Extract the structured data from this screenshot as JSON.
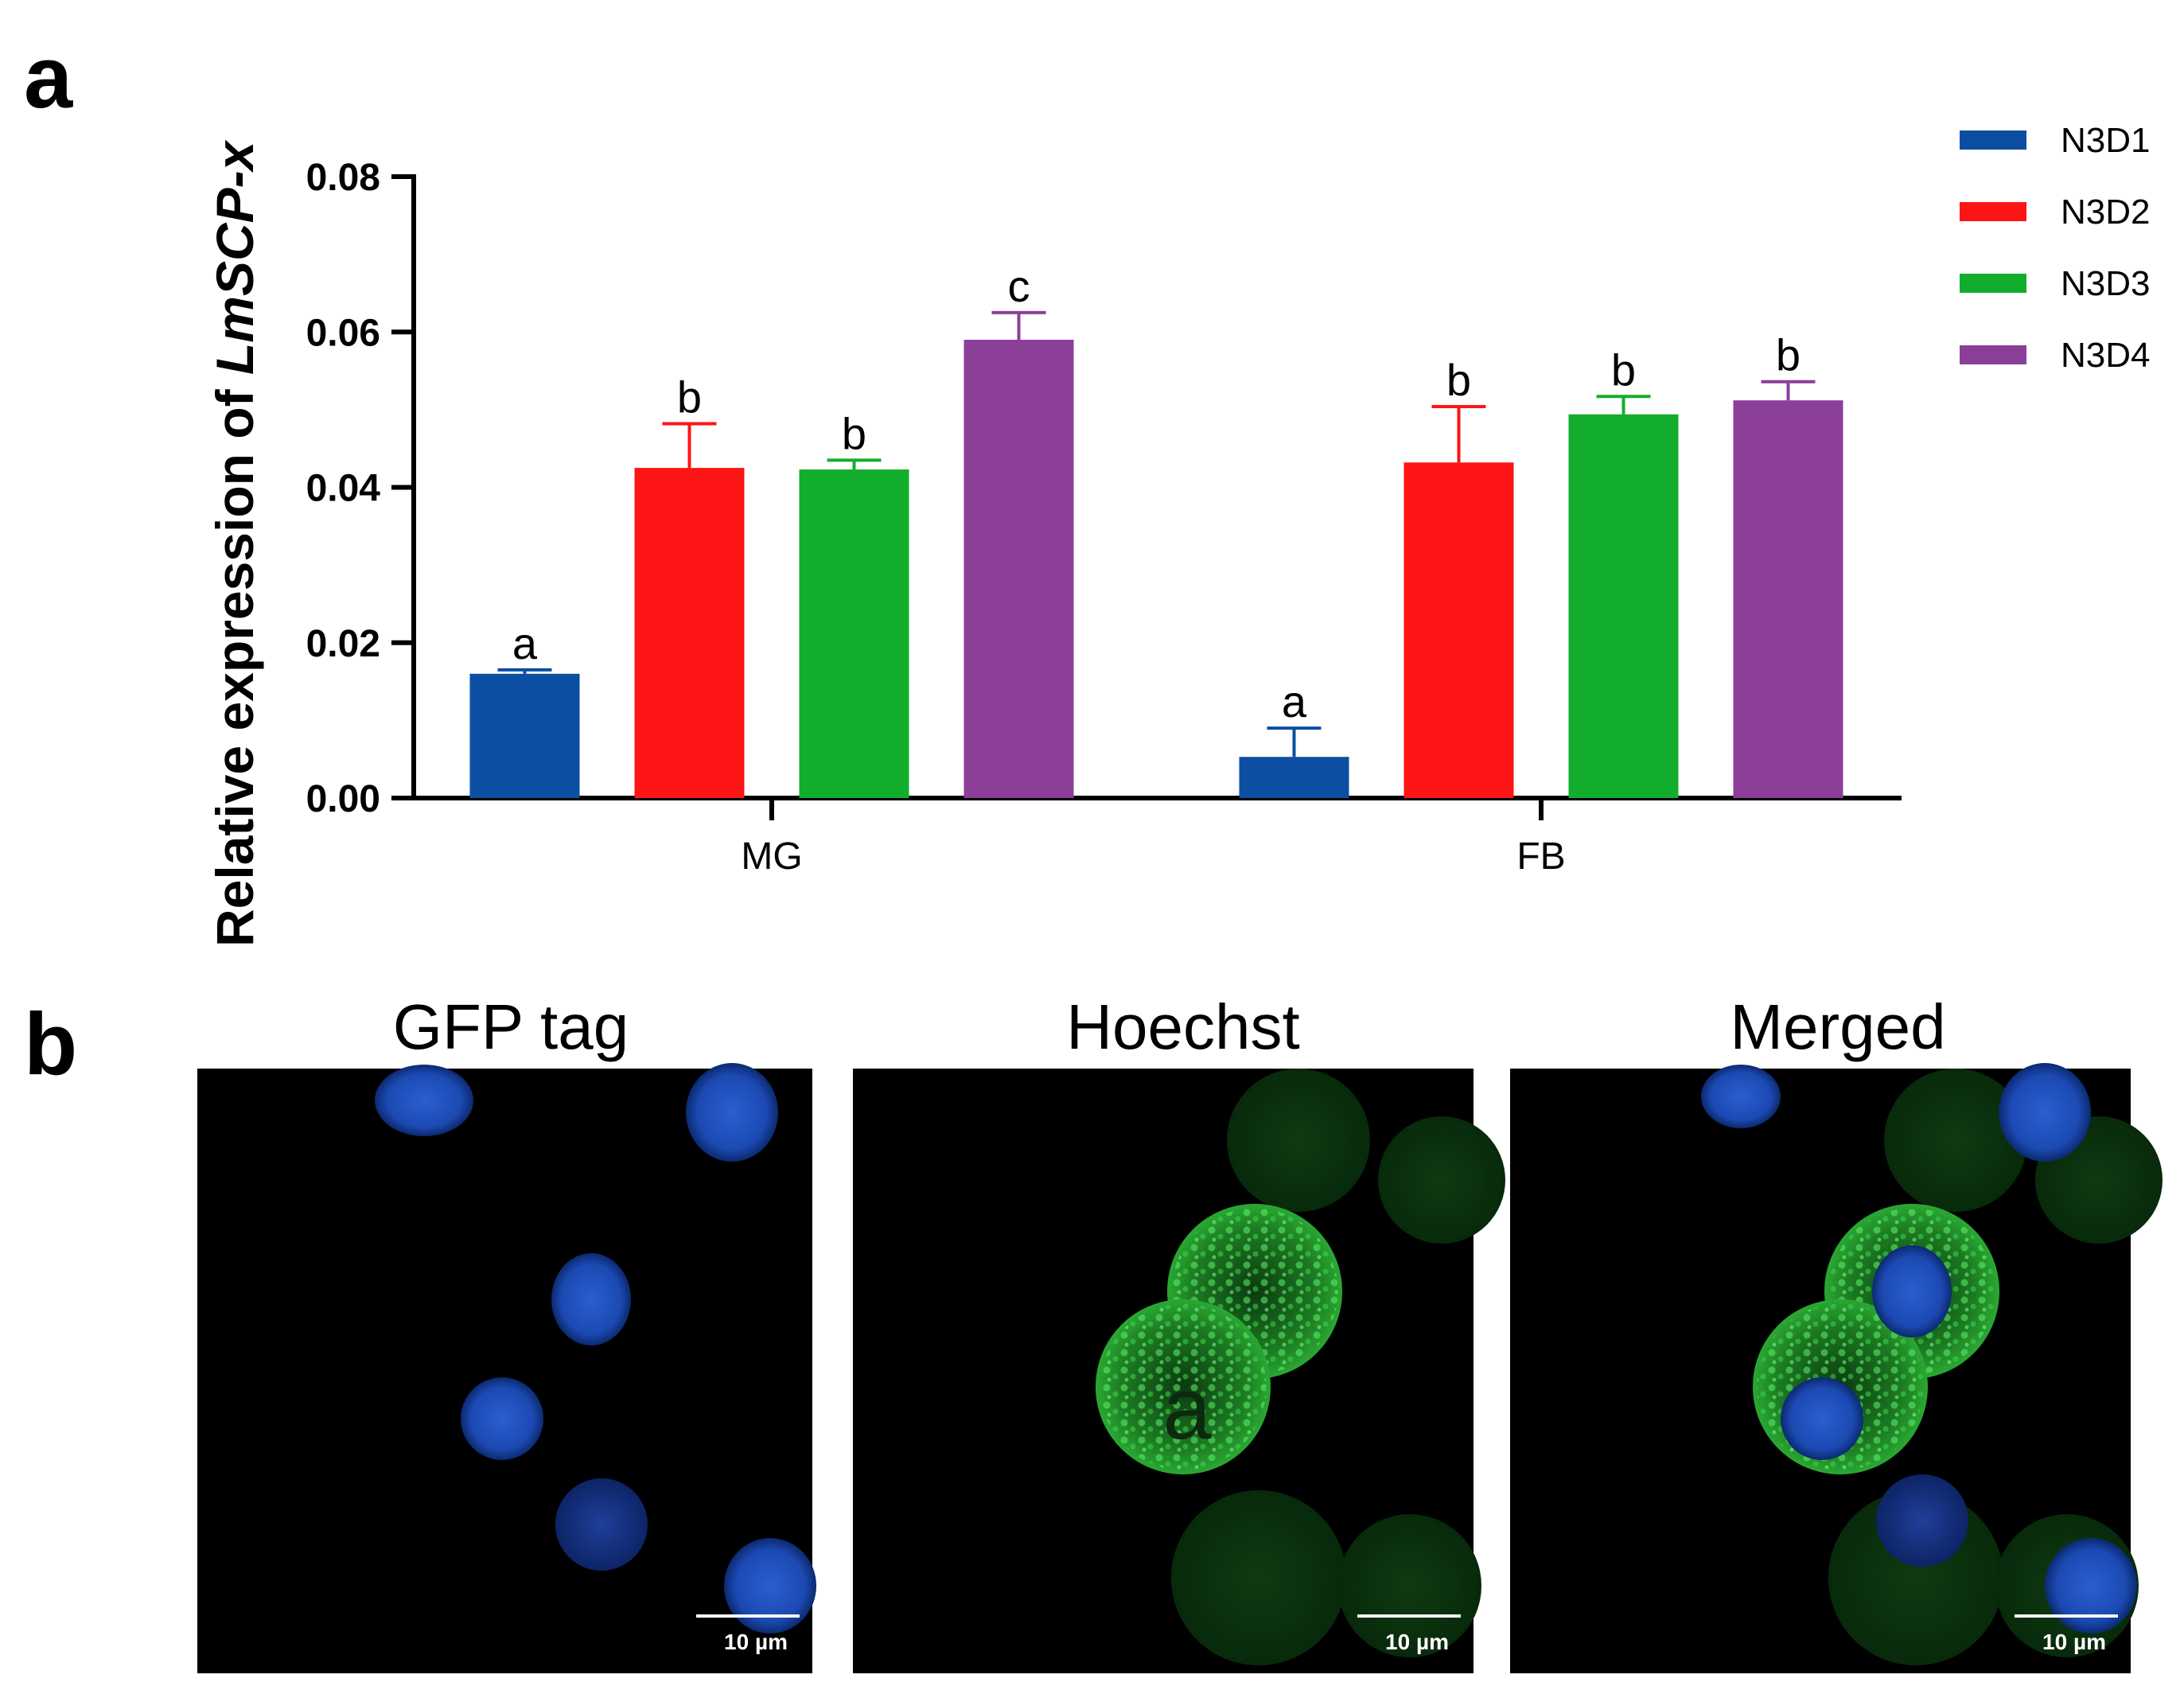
{
  "panel_a_label": "a",
  "panel_b_label": "b",
  "chart_data": {
    "type": "bar",
    "ylabel_prefix": "Relative expression of ",
    "ylabel_gene": "LmSCP-x",
    "ylim": [
      0,
      0.08
    ],
    "yticks": [
      "0.00",
      "0.02",
      "0.04",
      "0.06",
      "0.08"
    ],
    "categories": [
      "MG",
      "FB"
    ],
    "legend_position": "top-right",
    "series": [
      {
        "name": "N3D1",
        "color": "#0b4ea2",
        "values": [
          0.016,
          0.0053
        ],
        "errors": [
          0.0005,
          0.0037
        ],
        "sig": [
          "a",
          "a"
        ]
      },
      {
        "name": "N3D2",
        "color": "#fd1414",
        "values": [
          0.0425,
          0.0432
        ],
        "errors": [
          0.0057,
          0.0072
        ],
        "sig": [
          "b",
          "b"
        ]
      },
      {
        "name": "N3D3",
        "color": "#13ad2d",
        "values": [
          0.0423,
          0.0494
        ],
        "errors": [
          0.0012,
          0.0023
        ],
        "sig": [
          "b",
          "b"
        ]
      },
      {
        "name": "N3D4",
        "color": "#8b3f98",
        "values": [
          0.059,
          0.0512
        ],
        "errors": [
          0.0035,
          0.0024
        ],
        "sig": [
          "c",
          "b"
        ]
      }
    ]
  },
  "micrographs": [
    {
      "title": "GFP tag",
      "scale_label": "10 µm",
      "icon": "blue-nuclei-micrograph"
    },
    {
      "title": "Hoechst",
      "scale_label": "10 µm",
      "icon": "green-cells-micrograph",
      "overlay_text": "a"
    },
    {
      "title": "Merged",
      "scale_label": "10 µm",
      "icon": "merged-micrograph"
    }
  ]
}
